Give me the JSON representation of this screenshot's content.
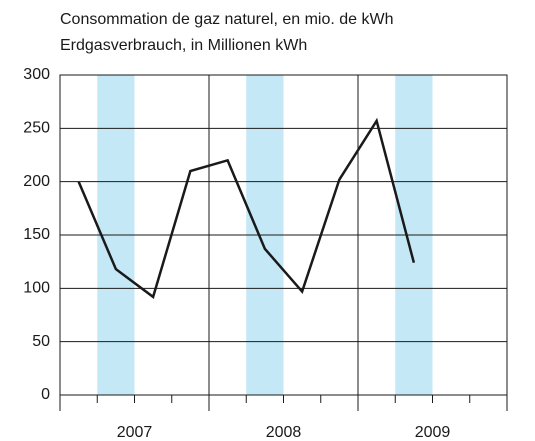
{
  "chart_data": {
    "type": "line",
    "title": "Consommation de gaz naturel, en mio. de kWh",
    "subtitle": "Erdgasverbrauch, in Millionen kWh",
    "categories": [
      null,
      null,
      null,
      null,
      null,
      null,
      null,
      null,
      null,
      null,
      null,
      null
    ],
    "year_labels": [
      "2007",
      "2008",
      "2009"
    ],
    "series": [
      {
        "name": null,
        "color": "#1a1a1a",
        "values": [
          200,
          118,
          92,
          210,
          220,
          137,
          97,
          202,
          257,
          124,
          null,
          null
        ]
      }
    ],
    "band_color": "#c5e8f7",
    "ylim": [
      0,
      300
    ],
    "yticks": [
      0,
      50,
      100,
      150,
      200,
      250,
      300
    ],
    "grid": true
  }
}
